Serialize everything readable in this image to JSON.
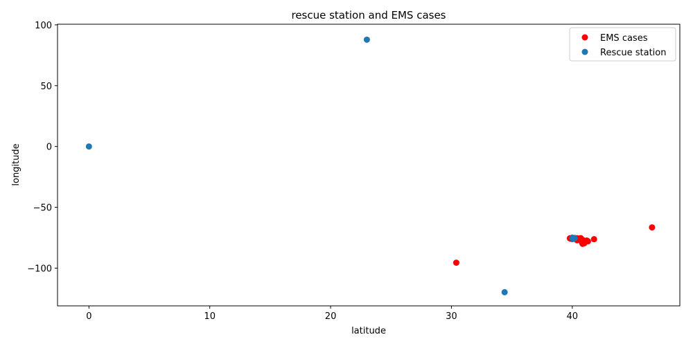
{
  "chart_data": {
    "type": "scatter",
    "title": "rescue station and EMS cases",
    "xlabel": "latitude",
    "ylabel": "longitude",
    "xlim": [
      -2.6,
      48.9
    ],
    "ylim": [
      -131,
      100.5
    ],
    "xticks": [
      0,
      10,
      20,
      30,
      40
    ],
    "xtick_labels": [
      "0",
      "10",
      "20",
      "30",
      "40"
    ],
    "yticks": [
      100,
      50,
      0,
      -50,
      -100
    ],
    "ytick_labels": [
      "100",
      "50",
      "0",
      "−50",
      "−100"
    ],
    "grid": false,
    "legend": "top-right",
    "series": [
      {
        "name": "EMS cases",
        "color": "#ff0000",
        "points": [
          [
            30.4,
            -95.5
          ],
          [
            46.6,
            -66.5
          ],
          [
            41.8,
            -76.2
          ],
          [
            39.8,
            -75.5
          ],
          [
            39.9,
            -75.3
          ],
          [
            40.0,
            -75.0
          ],
          [
            40.1,
            -75.8
          ],
          [
            40.2,
            -75.2
          ],
          [
            40.3,
            -75.6
          ],
          [
            40.4,
            -75.4
          ],
          [
            40.5,
            -76.0
          ],
          [
            40.6,
            -75.7
          ],
          [
            40.7,
            -75.3
          ],
          [
            40.8,
            -76.5
          ],
          [
            40.9,
            -77.0
          ],
          [
            41.0,
            -77.5
          ],
          [
            41.1,
            -78.0
          ],
          [
            41.2,
            -77.3
          ],
          [
            40.8,
            -78.8
          ],
          [
            40.9,
            -79.2
          ],
          [
            41.0,
            -79.5
          ],
          [
            40.85,
            -80.0
          ],
          [
            41.0,
            -79.0
          ],
          [
            40.5,
            -75.9
          ],
          [
            40.3,
            -76.2
          ],
          [
            40.0,
            -76.1
          ],
          [
            39.9,
            -75.9
          ],
          [
            40.6,
            -76.6
          ],
          [
            40.7,
            -76.9
          ],
          [
            40.4,
            -77.1
          ],
          [
            41.3,
            -77.9
          ]
        ]
      },
      {
        "name": "Rescue station",
        "color": "#1f77b4",
        "points": [
          [
            0,
            0
          ],
          [
            23.0,
            87.8
          ],
          [
            34.4,
            -119.8
          ],
          [
            40.0,
            -75.3
          ],
          [
            40.1,
            -75.6
          ],
          [
            40.2,
            -75.4
          ],
          [
            40.15,
            -75.2
          ],
          [
            40.05,
            -75.8
          ]
        ]
      }
    ]
  }
}
